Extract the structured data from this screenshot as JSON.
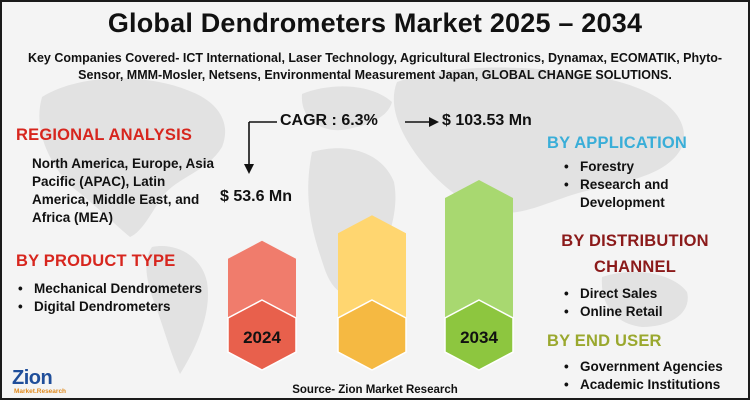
{
  "header": {
    "title": "Global Dendrometers Market 2025 – 2034",
    "companies": "Key Companies Covered- ICT International, Laser Technology, Agricultural Electronics, Dynamax, ECOMATIK, Phyto-Sensor, MMM-Mosler, Netsens, Environmental Measurement Japan, GLOBAL CHANGE SOLUTIONS."
  },
  "regional": {
    "heading": "REGIONAL ANALYSIS",
    "text": "North America, Europe, Asia Pacific (APAC), Latin America, Middle East, and Africa (MEA)"
  },
  "product_type": {
    "heading": "BY PRODUCT TYPE",
    "items": [
      "Mechanical Dendrometers",
      "Digital Dendrometers"
    ]
  },
  "application": {
    "heading": "BY APPLICATION",
    "items": [
      "Forestry",
      "Research and Development"
    ]
  },
  "distribution": {
    "heading_line1": "BY DISTRIBUTION",
    "heading_line2": "CHANNEL",
    "items": [
      "Direct Sales",
      "Online Retail"
    ]
  },
  "end_user": {
    "heading": "BY END USER",
    "items": [
      "Government Agencies",
      "Academic Institutions"
    ]
  },
  "chart_data": {
    "type": "bar",
    "categories": [
      "2024",
      "",
      "2034"
    ],
    "values": [
      53.6,
      null,
      103.53
    ],
    "value_labels": [
      "$ 53.6 Mn",
      "",
      "$ 103.53 Mn"
    ],
    "cagr_label": "CAGR : 6.3%",
    "bar_colors": [
      "#e8604c",
      "#f5b942",
      "#8dc63f"
    ],
    "bar_light_colors": [
      "#f07c6c",
      "#ffd670",
      "#a8d870"
    ],
    "relative_heights": [
      0.62,
      0.78,
      1.0
    ],
    "legend": "none",
    "grid": false
  },
  "footer": {
    "source": "Source- Zion Market Research",
    "logo_word": "Zion",
    "logo_sub": "Market.Research"
  },
  "colors": {
    "heading_red": "#d7261e",
    "heading_blue": "#3aaed8",
    "heading_maroon": "#8b1a1a",
    "heading_olive": "#9aa82e"
  }
}
